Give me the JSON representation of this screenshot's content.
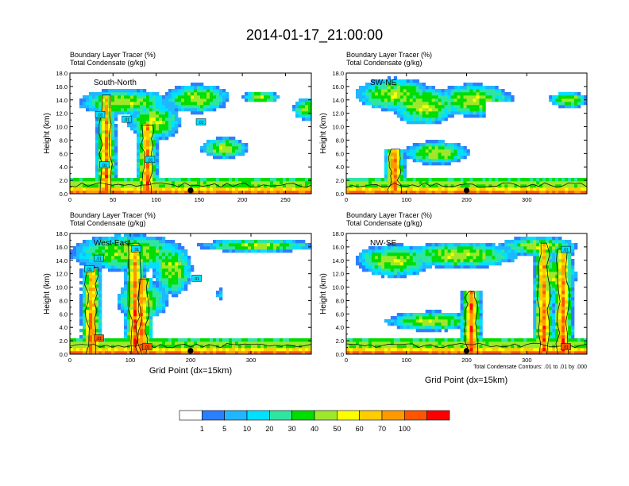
{
  "figure": {
    "title": "2014-01-17_21:00:00",
    "footnote": "Total Condensate Contours: .01 to .01 by .000",
    "xlabel": "Grid Point (dx=15km)"
  },
  "colorbar": {
    "colors": [
      "#ffffff",
      "#2b7fff",
      "#1fb7ff",
      "#00e0ff",
      "#2fe6a0",
      "#00dd00",
      "#9de82a",
      "#ffff00",
      "#ffcc00",
      "#ff9900",
      "#ff5500",
      "#ff0000"
    ],
    "labels": [
      "1",
      "5",
      "10",
      "20",
      "30",
      "40",
      "50",
      "60",
      "70",
      "100"
    ]
  },
  "chart_data": [
    {
      "type": "heatmap",
      "panel": "South-North",
      "title_line1": "Boundary Layer Tracer   (%)",
      "title_line2": "Total Condensate   (g/kg)",
      "ylabel": "Height (km)",
      "xlim": [
        0,
        280
      ],
      "ylim": [
        0,
        18
      ],
      "xticks": [
        "0",
        "50",
        "100",
        "150",
        "200",
        "250"
      ],
      "xtick_values": [
        0,
        50,
        100,
        150,
        200,
        250
      ],
      "yticks": [
        "0.0",
        "2.0",
        "4.0",
        "6.0",
        "8.0",
        "10.0",
        "12.0",
        "14.0",
        "16.0",
        "18.0"
      ],
      "marker_x": 140,
      "contour_labels": [
        {
          "text": ".01",
          "x": 35,
          "y": 11.7
        },
        {
          "text": ".01",
          "x": 66,
          "y": 11.0
        },
        {
          "text": ".01",
          "x": 40,
          "y": 4.2
        },
        {
          "text": ".01",
          "x": 93,
          "y": 5.0
        },
        {
          "text": ".01",
          "x": 152,
          "y": 10.6
        }
      ]
    },
    {
      "type": "heatmap",
      "panel": "SW-NE",
      "title_line1": "Boundary Layer Tracer   (%)",
      "title_line2": "Total Condensate   (g/kg)",
      "ylabel": "Height (km)",
      "xlim": [
        0,
        400
      ],
      "ylim": [
        0,
        18
      ],
      "xticks": [
        "0",
        "100",
        "200",
        "300"
      ],
      "xtick_values": [
        0,
        100,
        200,
        300
      ],
      "yticks": [
        "0.0",
        "2.0",
        "4.0",
        "6.0",
        "8.0",
        "10.0",
        "12.0",
        "14.0",
        "16.0",
        "18.0"
      ],
      "marker_x": 200,
      "contour_labels": []
    },
    {
      "type": "heatmap",
      "panel": "West-East",
      "title_line1": "Boundary Layer Tracer   (%)",
      "title_line2": "Total Condensate   (g/kg)",
      "ylabel": "Height (km)",
      "xlim": [
        0,
        400
      ],
      "ylim": [
        0,
        18
      ],
      "xticks": [
        "0",
        "100",
        "200",
        "300"
      ],
      "xtick_values": [
        0,
        100,
        200,
        300
      ],
      "yticks": [
        "0.0",
        "2.0",
        "4.0",
        "6.0",
        "8.0",
        "10.0",
        "12.0",
        "14.0",
        "16.0",
        "18.0"
      ],
      "marker_x": 200,
      "contour_labels": [
        {
          "text": ".01",
          "x": 110,
          "y": 15.6
        },
        {
          "text": ".01",
          "x": 48,
          "y": 14.2
        },
        {
          "text": ".01",
          "x": 32,
          "y": 12.6
        },
        {
          "text": ".01",
          "x": 210,
          "y": 11.2
        },
        {
          "text": ".01",
          "x": 48,
          "y": 2.3
        },
        {
          "text": ".01",
          "x": 128,
          "y": 1.0
        }
      ]
    },
    {
      "type": "heatmap",
      "panel": "NW-SE",
      "title_line1": "Boundary Layer Tracer   (%)",
      "title_line2": "Total Condensate   (g/kg)",
      "ylabel": "Height (km)",
      "xlim": [
        0,
        400
      ],
      "ylim": [
        0,
        18
      ],
      "xticks": [
        "0",
        "100",
        "200",
        "300"
      ],
      "xtick_values": [
        0,
        100,
        200,
        300
      ],
      "yticks": [
        "0.0",
        "2.0",
        "4.0",
        "6.0",
        "8.0",
        "10.0",
        "12.0",
        "14.0",
        "16.0",
        "18.0"
      ],
      "marker_x": 200,
      "contour_labels": [
        {
          "text": ".01",
          "x": 365,
          "y": 15.5
        },
        {
          "text": ".01",
          "x": 365,
          "y": 1.0
        }
      ]
    }
  ]
}
